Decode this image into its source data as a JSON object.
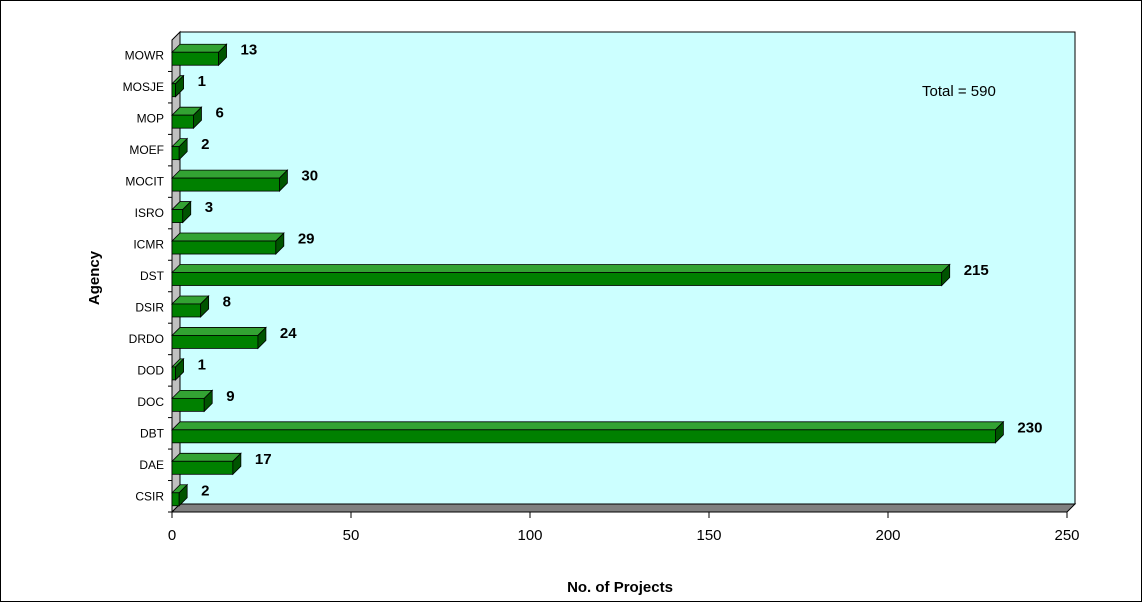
{
  "chart_data": {
    "type": "bar",
    "orientation": "horizontal",
    "title": "",
    "xlabel": "No. of Projects",
    "ylabel": "Agency",
    "xlim": [
      0,
      250
    ],
    "x_ticks": [
      0,
      50,
      100,
      150,
      200,
      250
    ],
    "categories": [
      "CSIR",
      "DAE",
      "DBT",
      "DOC",
      "DOD",
      "DRDO",
      "DSIR",
      "DST",
      "ICMR",
      "ISRO",
      "MOCIT",
      "MOEF",
      "MOP",
      "MOSJE",
      "MOWR"
    ],
    "values": [
      2,
      17,
      230,
      9,
      1,
      24,
      8,
      215,
      29,
      3,
      30,
      2,
      6,
      1,
      13
    ],
    "annotation": "Total = 590",
    "grid": false,
    "legend": "none",
    "colors": {
      "bar_front": "#008000",
      "bar_top": "#33a333",
      "bar_side": "#005400",
      "plot_background": "#ccffff",
      "border": "#000000"
    }
  }
}
